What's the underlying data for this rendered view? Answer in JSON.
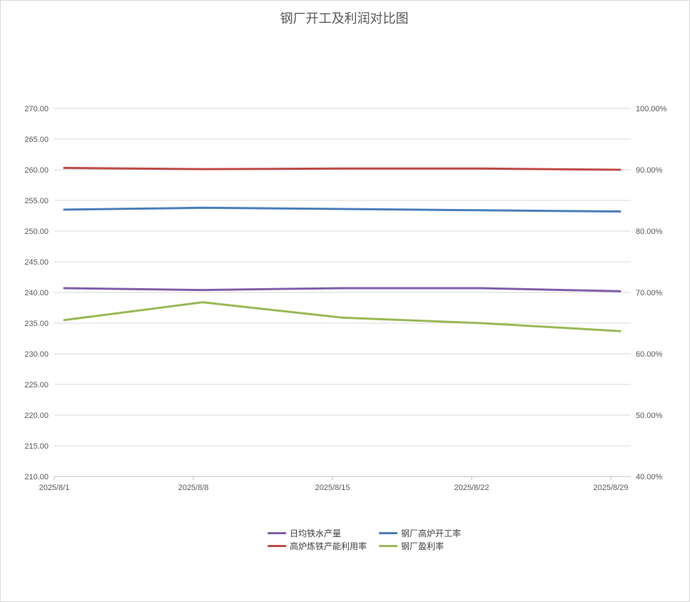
{
  "chart_data": {
    "type": "line",
    "title": "钢厂开工及利润对比图",
    "categories": [
      "2025/8/1",
      "2025/8/8",
      "2025/8/15",
      "2025/8/22",
      "2025/8/29"
    ],
    "left_axis": {
      "ylim": [
        210,
        270
      ],
      "ticks": [
        "270.00",
        "265.00",
        "260.00",
        "255.00",
        "250.00",
        "245.00",
        "240.00",
        "235.00",
        "230.00",
        "225.00",
        "220.00",
        "215.00",
        "210.00"
      ]
    },
    "right_axis": {
      "ylim": [
        40,
        100
      ],
      "ticks": [
        "100.00%",
        "90.00%",
        "80.00%",
        "70.00%",
        "60.00%",
        "50.00%",
        "40.00%"
      ]
    },
    "grid": true,
    "legend_position": "bottom",
    "series": [
      {
        "name": "日均铁水产量",
        "axis": "left",
        "color": "#7f5fa8",
        "values": [
          240.7,
          240.4,
          240.7,
          240.7,
          240.2
        ]
      },
      {
        "name": "钢厂高炉开工率",
        "axis": "right",
        "color": "#4a7ebb",
        "values": [
          83.5,
          83.8,
          83.6,
          83.4,
          83.2
        ]
      },
      {
        "name": "高炉炼铁产能利用率",
        "axis": "right",
        "color": "#be4b48",
        "values": [
          90.3,
          90.1,
          90.2,
          90.2,
          90.0
        ]
      },
      {
        "name": "钢厂盈利率",
        "axis": "right",
        "color": "#98b954",
        "values": [
          65.5,
          68.4,
          65.9,
          65.0,
          63.7
        ]
      }
    ]
  }
}
